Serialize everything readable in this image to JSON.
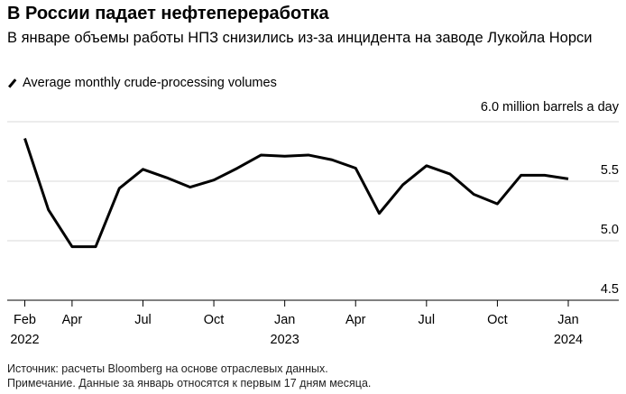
{
  "header": {
    "title": "В России падает нефтепереработка",
    "subtitle": "В январе объемы работы НПЗ снизились из-за инцидента на заводе Лукойла Норси"
  },
  "chart_data": {
    "type": "line",
    "legend": "Average monthly crude-processing volumes",
    "ylabel": "6.0 million barrels a day",
    "ylim": [
      4.5,
      6.0
    ],
    "yticks": [
      4.5,
      5.0,
      5.5,
      6.0
    ],
    "ytick_labels": [
      "4.5",
      "5.0",
      "5.5"
    ],
    "x": [
      "2022-02",
      "2022-03",
      "2022-04",
      "2022-05",
      "2022-06",
      "2022-07",
      "2022-08",
      "2022-09",
      "2022-10",
      "2022-11",
      "2022-12",
      "2023-01",
      "2023-02",
      "2023-03",
      "2023-04",
      "2023-05",
      "2023-06",
      "2023-07",
      "2023-08",
      "2023-09",
      "2023-10",
      "2023-11",
      "2023-12",
      "2024-01"
    ],
    "values": [
      5.86,
      5.26,
      4.95,
      4.95,
      5.44,
      5.6,
      5.53,
      5.45,
      5.51,
      5.61,
      5.72,
      5.71,
      5.72,
      5.68,
      5.61,
      5.23,
      5.47,
      5.63,
      5.56,
      5.39,
      5.31,
      5.55,
      5.55,
      5.52
    ],
    "xticks": [
      {
        "i": 0,
        "label": "Feb",
        "year": "2022"
      },
      {
        "i": 2,
        "label": "Apr"
      },
      {
        "i": 5,
        "label": "Jul"
      },
      {
        "i": 8,
        "label": "Oct"
      },
      {
        "i": 11,
        "label": "Jan",
        "year": "2023"
      },
      {
        "i": 14,
        "label": "Apr"
      },
      {
        "i": 17,
        "label": "Jul"
      },
      {
        "i": 20,
        "label": "Oct"
      },
      {
        "i": 23,
        "label": "Jan",
        "year": "2024"
      }
    ],
    "line_color": "#000000",
    "grid_color": "#d9d9d9"
  },
  "footer": {
    "source": "Источник: расчеты Bloomberg на основе отраслевых данных.",
    "note": "Примечание. Данные за январь относятся к первым 17 дням месяца."
  }
}
